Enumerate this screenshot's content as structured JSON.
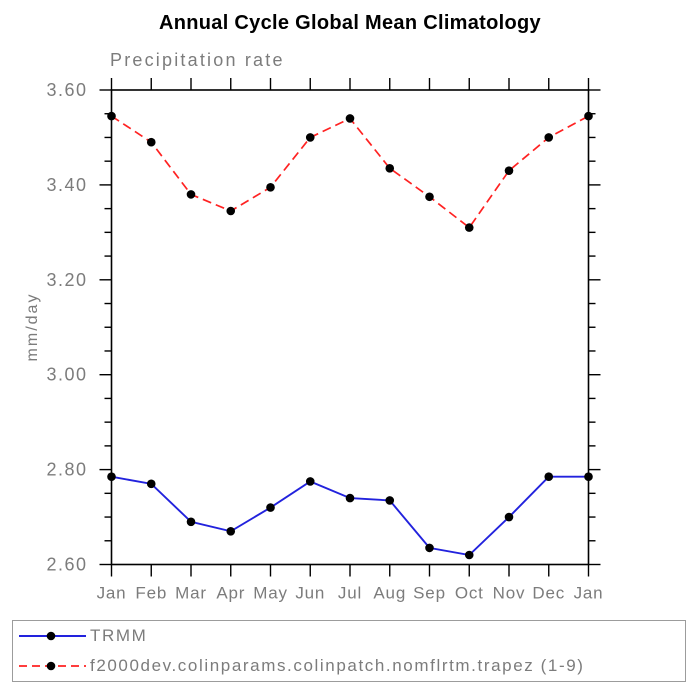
{
  "title": "Annual Cycle Global Mean Climatology",
  "subtitle": "Precipitation rate",
  "chart_data": {
    "type": "line",
    "title": "Annual Cycle Global Mean Climatology",
    "subtitle": "Precipitation rate",
    "ylabel": "mm/day",
    "xlabel": "",
    "categories": [
      "Jan",
      "Feb",
      "Mar",
      "Apr",
      "May",
      "Jun",
      "Jul",
      "Aug",
      "Sep",
      "Oct",
      "Nov",
      "Dec",
      "Jan"
    ],
    "series": [
      {
        "name": "TRMM",
        "color": "#2222dd",
        "line_style": "solid",
        "marker": "black-filled-circle",
        "values": [
          2.785,
          2.77,
          2.69,
          2.67,
          2.72,
          2.775,
          2.74,
          2.735,
          2.635,
          2.62,
          2.7,
          2.785,
          2.785
        ]
      },
      {
        "name": "f2000dev.colinparams.colinpatch.nomflrtm.trapez (1-9)",
        "color": "#ff2222",
        "line_style": "dashed",
        "marker": "black-filled-circle",
        "values": [
          3.545,
          3.49,
          3.38,
          3.345,
          3.395,
          3.5,
          3.54,
          3.435,
          3.375,
          3.31,
          3.43,
          3.5,
          3.545
        ]
      }
    ],
    "ylim": [
      2.6,
      3.6
    ],
    "ytick_labels": [
      "2.60",
      "2.80",
      "3.00",
      "3.20",
      "3.40",
      "3.60"
    ],
    "ytick_major_step": 0.2,
    "ytick_minor_step": 0.05,
    "grid": false,
    "legend_position": "bottom-box",
    "axis_color": "#000000",
    "tick_label_color": "#7c7c7c",
    "marker_color": "#000000"
  },
  "colors": {
    "background": "#ffffff",
    "title_text": "#000000",
    "gray_text": "#7c7c7c",
    "axis": "#000000",
    "legend_border": "#9c9c9c"
  }
}
